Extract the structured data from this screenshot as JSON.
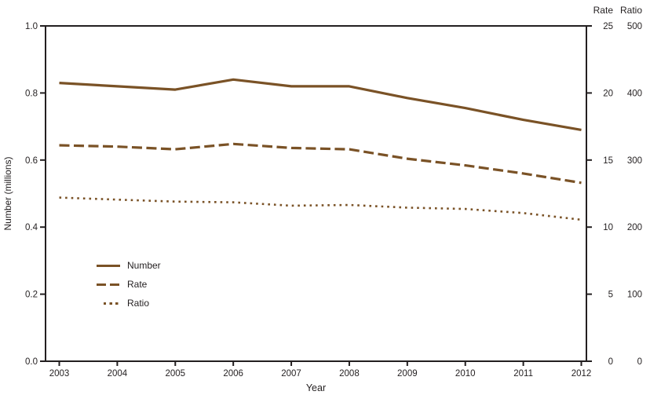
{
  "figure": {
    "colors": {
      "line": "#7a5226",
      "axis": "#231f20"
    }
  },
  "legend": {
    "items": [
      {
        "label": "Number",
        "style": "solid"
      },
      {
        "label": "Rate",
        "style": "dashed"
      },
      {
        "label": "Ratio",
        "style": "dotted"
      }
    ]
  },
  "chart_data": {
    "type": "line",
    "title": "",
    "x": [
      2003,
      2004,
      2005,
      2006,
      2007,
      2008,
      2009,
      2010,
      2011,
      2012
    ],
    "xlabel": "Year",
    "series": [
      {
        "name": "Number",
        "style": "solid",
        "axis": "number",
        "values": [
          0.83,
          0.82,
          0.81,
          0.84,
          0.82,
          0.82,
          0.785,
          0.755,
          0.72,
          0.69
        ]
      },
      {
        "name": "Rate",
        "style": "dashed",
        "axis": "rate",
        "values": [
          16.1,
          16.0,
          15.8,
          16.2,
          15.9,
          15.8,
          15.1,
          14.6,
          14.0,
          13.3
        ]
      },
      {
        "name": "Ratio",
        "style": "dotted",
        "axis": "ratio",
        "values": [
          244,
          241,
          238,
          237,
          232,
          233,
          229,
          227,
          221,
          211
        ]
      }
    ],
    "axes": {
      "number": {
        "title": "Number (millions)",
        "range": [
          0,
          1
        ],
        "ticks": [
          0,
          0.2,
          0.4,
          0.6,
          0.8,
          1.0
        ],
        "position": "left",
        "tick_decimals": 1
      },
      "rate": {
        "title": "Rate",
        "range": [
          0,
          25
        ],
        "ticks": [
          0,
          5,
          10,
          15,
          20,
          25
        ],
        "position": "right",
        "tick_decimals": 0
      },
      "ratio": {
        "title": "Ratio",
        "range": [
          0,
          500
        ],
        "ticks": [
          0,
          100,
          200,
          300,
          400,
          500
        ],
        "position": "right-outer",
        "tick_decimals": 0
      }
    },
    "grid": false,
    "legend_position": "inside-left-middle"
  }
}
